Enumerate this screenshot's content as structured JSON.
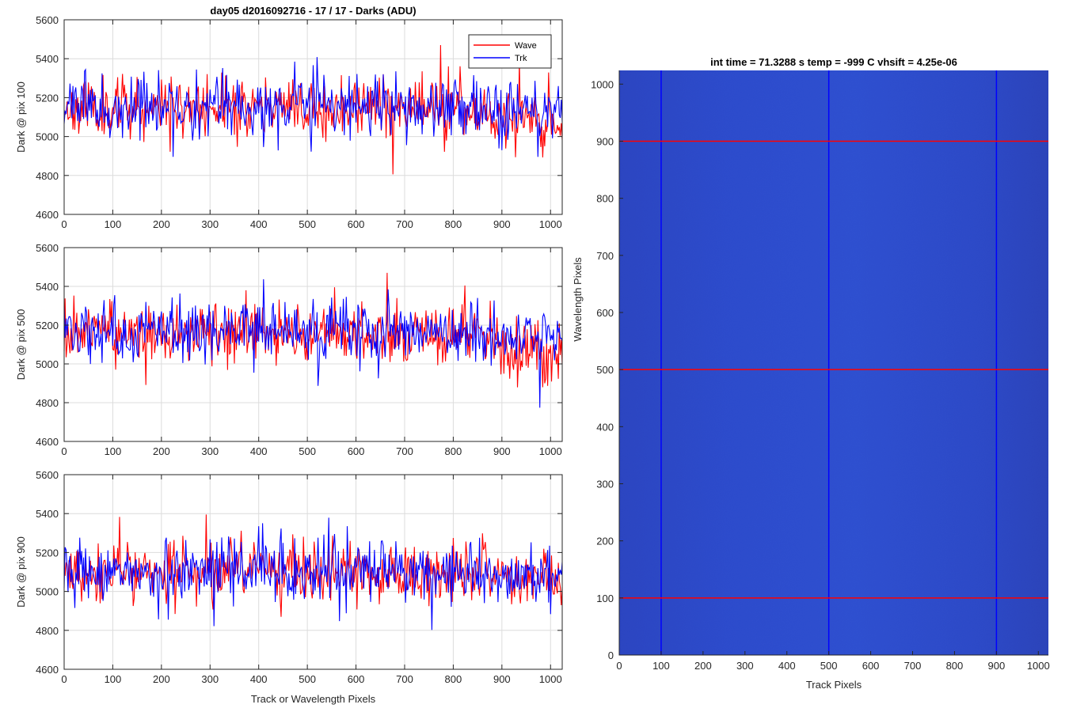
{
  "chart_data": [
    {
      "type": "line",
      "panel": "top-left",
      "title": "day05 d2016092716 - 17 / 17 - Darks (ADU)",
      "ylabel": "Dark @ pix 100",
      "xlabel": "",
      "xlim": [
        0,
        1024
      ],
      "ylim": [
        4600,
        5600
      ],
      "xticks": [
        0,
        100,
        200,
        300,
        400,
        500,
        600,
        700,
        800,
        900,
        1000
      ],
      "yticks": [
        4600,
        4800,
        5000,
        5200,
        5400,
        5600
      ],
      "grid": true,
      "legend": {
        "placement": "top-right",
        "entries": [
          "Wave",
          "Trk"
        ]
      },
      "series": [
        {
          "name": "Wave",
          "color": "#ff0000",
          "mean": 5150,
          "spread": 90,
          "drift_end": -100,
          "seed": 11
        },
        {
          "name": "Trk",
          "color": "#0000ff",
          "mean": 5150,
          "spread": 95,
          "drift_end": 0,
          "seed": 23
        }
      ]
    },
    {
      "type": "line",
      "panel": "middle-left",
      "title": "",
      "ylabel": "Dark @ pix 500",
      "xlabel": "",
      "xlim": [
        0,
        1024
      ],
      "ylim": [
        4600,
        5600
      ],
      "xticks": [
        0,
        100,
        200,
        300,
        400,
        500,
        600,
        700,
        800,
        900,
        1000
      ],
      "yticks": [
        4600,
        4800,
        5000,
        5200,
        5400,
        5600
      ],
      "grid": true,
      "series": [
        {
          "name": "Wave",
          "color": "#ff0000",
          "mean": 5150,
          "spread": 95,
          "drift_end": -120,
          "seed": 37
        },
        {
          "name": "Trk",
          "color": "#0000ff",
          "mean": 5170,
          "spread": 95,
          "drift_end": -40,
          "seed": 41
        }
      ]
    },
    {
      "type": "line",
      "panel": "bottom-left",
      "title": "",
      "ylabel": "Dark @ pix 900",
      "xlabel": "Track or Wavelength Pixels",
      "xlim": [
        0,
        1024
      ],
      "ylim": [
        4600,
        5600
      ],
      "xticks": [
        0,
        100,
        200,
        300,
        400,
        500,
        600,
        700,
        800,
        900,
        1000
      ],
      "yticks": [
        4600,
        4800,
        5000,
        5200,
        5400,
        5600
      ],
      "grid": true,
      "series": [
        {
          "name": "Wave",
          "color": "#ff0000",
          "mean": 5100,
          "spread": 95,
          "drift_end": -60,
          "seed": 53
        },
        {
          "name": "Trk",
          "color": "#0000ff",
          "mean": 5090,
          "spread": 90,
          "drift_end": -20,
          "seed": 67
        }
      ]
    },
    {
      "type": "heatmap",
      "panel": "right",
      "title": "int time = 71.3288 s   temp = -999 C   vhsift = 4.25e-06",
      "xlabel": "Track Pixels",
      "ylabel": "Wavelength Pixels",
      "xlim": [
        0,
        1024
      ],
      "ylim": [
        0,
        1024
      ],
      "xticks": [
        0,
        100,
        200,
        300,
        400,
        500,
        600,
        700,
        800,
        900,
        1000
      ],
      "yticks": [
        0,
        100,
        200,
        300,
        400,
        500,
        600,
        700,
        800,
        900,
        1000
      ],
      "colormap_color": "#2a48c8",
      "vertical_lines": {
        "color": "#0000ff",
        "positions": [
          100,
          500,
          900
        ]
      },
      "horizontal_lines": {
        "color": "#ff0000",
        "positions": [
          100,
          500,
          900
        ]
      }
    }
  ]
}
